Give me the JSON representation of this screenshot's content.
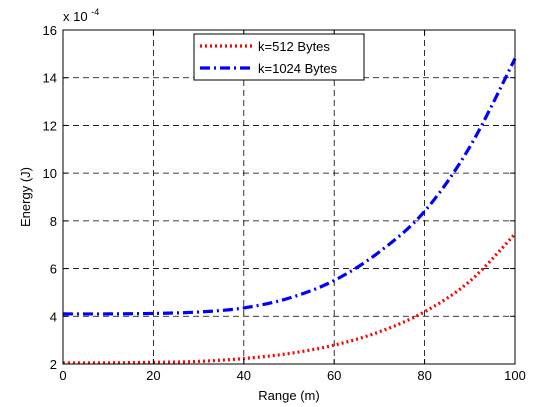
{
  "chart_data": {
    "type": "line",
    "title": "",
    "xlabel": "Range (m)",
    "ylabel": "Energy (J)",
    "y_multiplier_label": "x 10",
    "y_multiplier_exponent": "-4",
    "xlim": [
      0,
      100
    ],
    "ylim": [
      2,
      16
    ],
    "xticks": [
      0,
      20,
      40,
      60,
      80,
      100
    ],
    "yticks": [
      2,
      4,
      6,
      8,
      10,
      12,
      14,
      16
    ],
    "grid": true,
    "grid_style": "dashed",
    "legend_position": "top-center",
    "x": [
      0,
      10,
      20,
      30,
      40,
      50,
      60,
      70,
      80,
      90,
      100
    ],
    "series": [
      {
        "name": "k=512 Bytes",
        "color": "#ff0000",
        "line_style": "dotted",
        "values": [
          2.05,
          2.05,
          2.07,
          2.11,
          2.23,
          2.44,
          2.79,
          3.35,
          4.19,
          5.47,
          7.45
        ]
      },
      {
        "name": "k=1024 Bytes",
        "color": "#0000ff",
        "line_style": "dash-dot",
        "values": [
          4.1,
          4.1,
          4.12,
          4.18,
          4.35,
          4.76,
          5.5,
          6.7,
          8.4,
          11.1,
          14.8
        ]
      }
    ]
  }
}
